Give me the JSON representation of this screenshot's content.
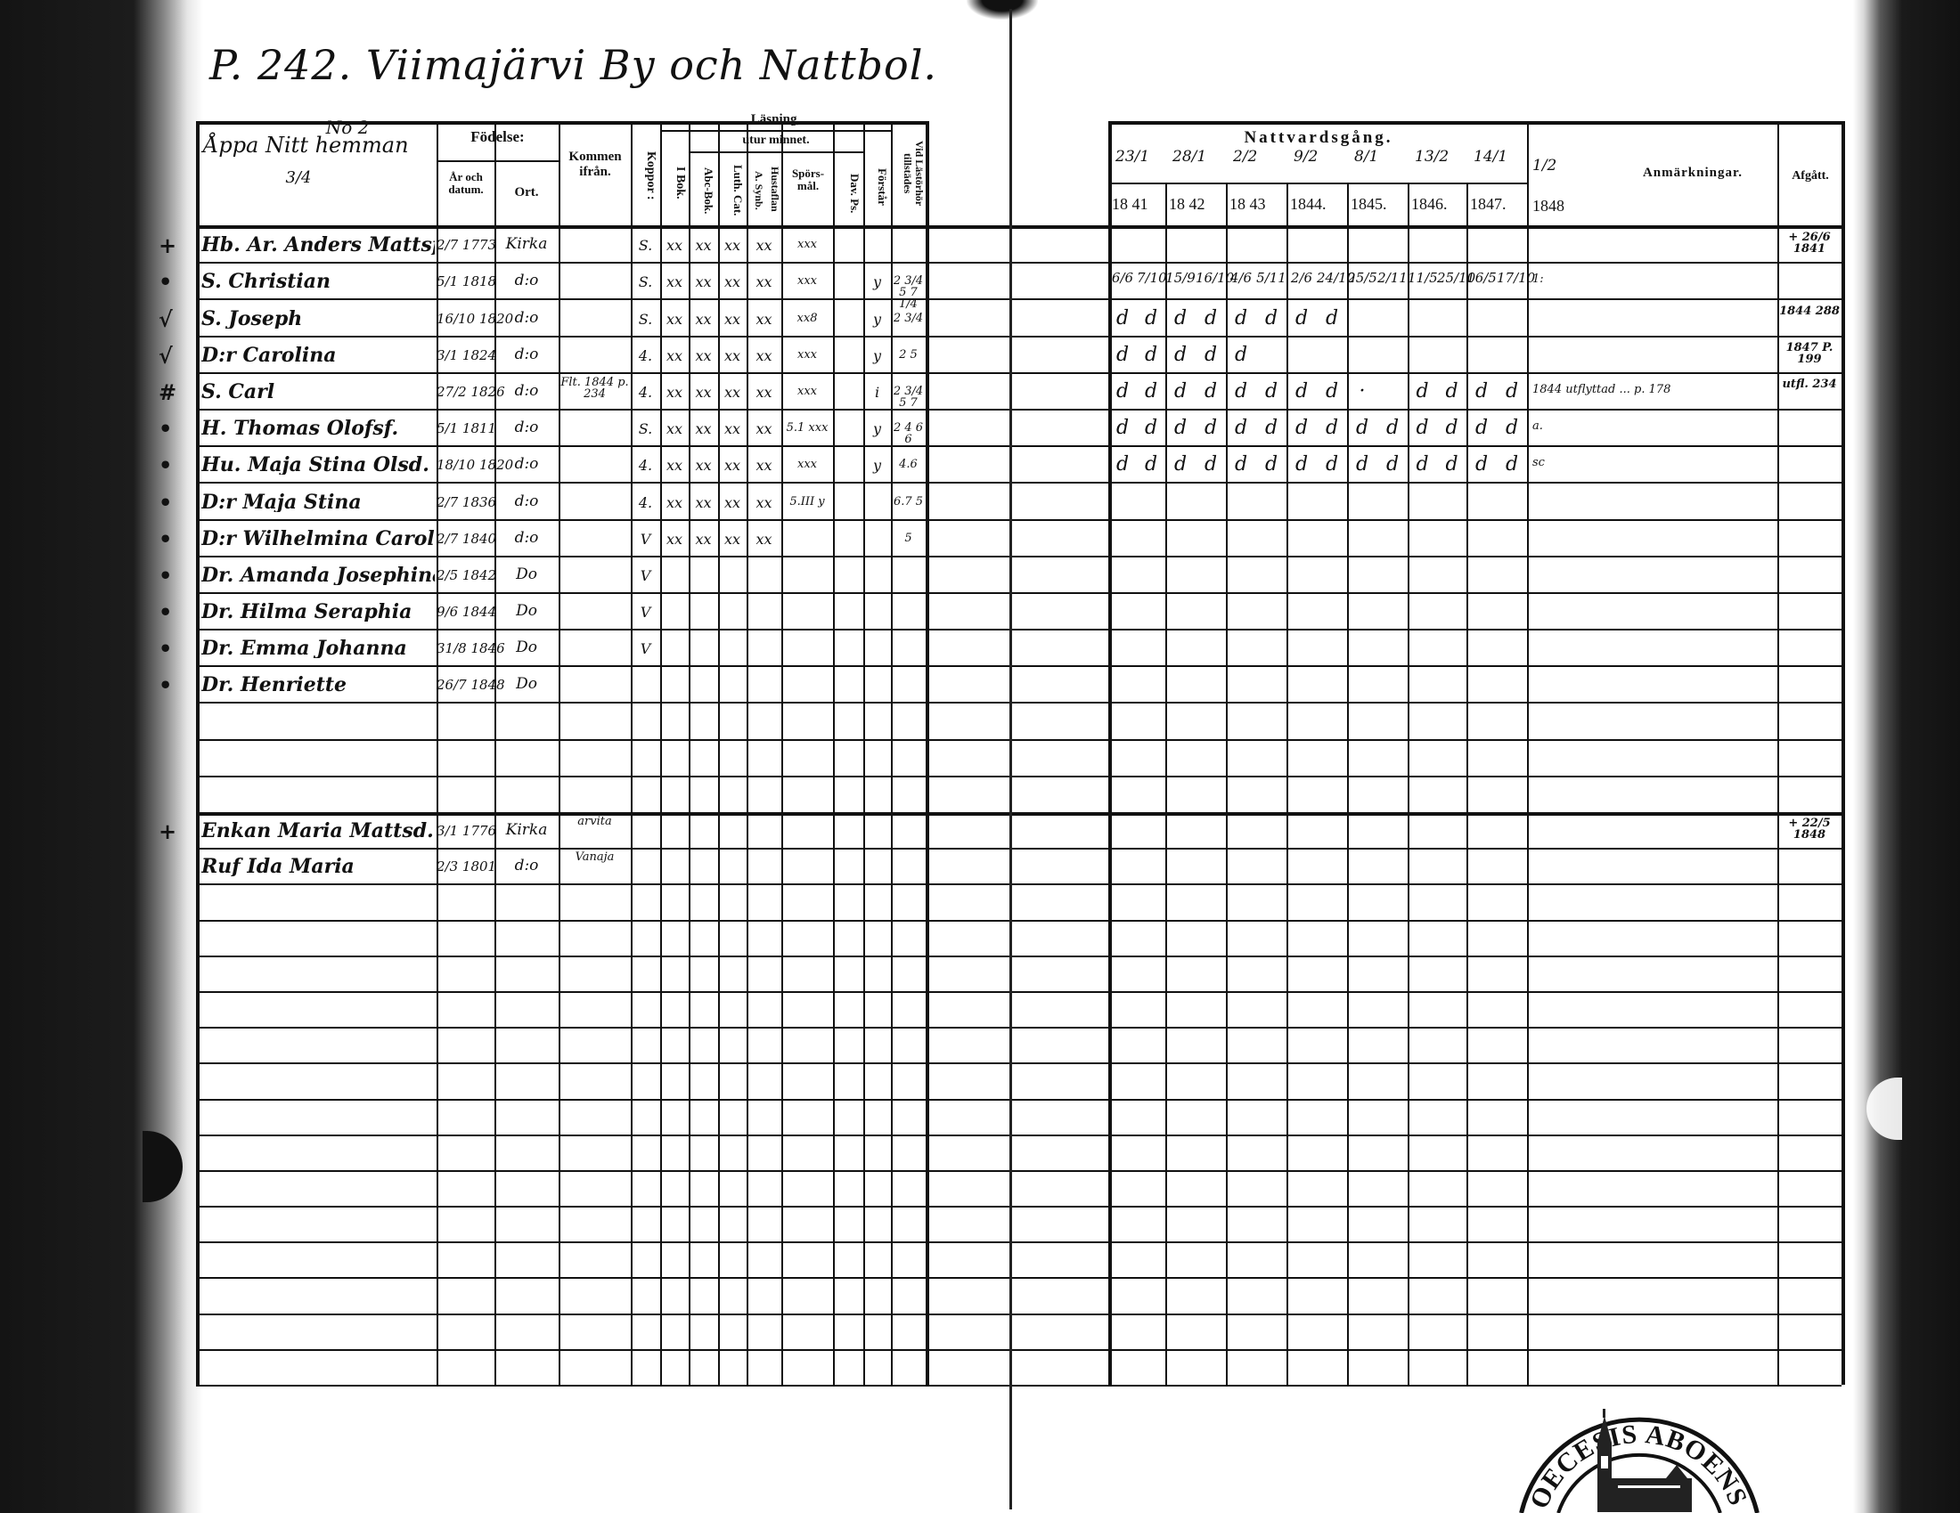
{
  "page_title": "P. 242. Viimajärvi By och Nattbol.",
  "left_header": {
    "col_household": "Åppa Nitt hemman",
    "col_household_no": "No 2",
    "col_household_sub": "3/4",
    "fodelse": "Födelse:",
    "ar_och_datum": "År och datum.",
    "ort": "Ort.",
    "kommen_ifran": "Kommen ifrån.",
    "koppor": "Koppor :",
    "lasning": "Läsning,",
    "utur_minnet": "utur minnet.",
    "i_bok": "I Bok.",
    "abc_bok": "Abc-Bok.",
    "luth_cat": "Luth. Cat.",
    "a_synb": "A. Synb.",
    "hustaflan": "Hustaflan",
    "sporsmal": "Spörs-mål.",
    "dav_ps": "Dav. Ps.",
    "forstar": "Förstår",
    "vid_lasforhor": "Vid Lästörhör tillstädes"
  },
  "right_header": {
    "nattvardsgang": "Nattvardsgång.",
    "dates": [
      "23/1",
      "28/1",
      "2/2",
      "9/2",
      "8/1",
      "13/2",
      "14/1",
      "1/2"
    ],
    "years": [
      "18 41",
      "18 42",
      "18 43",
      "1844.",
      "1845.",
      "1846.",
      "1847.",
      "1848"
    ],
    "anmarkningar": "Anmärkningar.",
    "afgatt": "Afgått."
  },
  "rows": [
    {
      "mark": "+",
      "name": "Hb. Ar. Anders Mattsf.",
      "date": "2/7 1773",
      "place": "Kirka",
      "from": "",
      "koppor": "S.",
      "ibok": "xx",
      "abc": "xx",
      "luth": "xx",
      "synb": "xx",
      "spors": "xxx",
      "davps": "",
      "forstar": "",
      "vid": "",
      "communion": [],
      "anm": "",
      "afgatt": "+ 26/6 1841"
    },
    {
      "mark": "•",
      "name": "S. Christian",
      "date": "5/1 1818",
      "place": "d:o",
      "from": "",
      "koppor": "S.",
      "ibok": "xx",
      "abc": "xx",
      "luth": "xx",
      "synb": "xx",
      "spors": "xxx",
      "davps": "",
      "forstar": "y",
      "vid": "2 3/4 5 7 1/4",
      "communion": [
        "6/6",
        "7/10",
        "15/9",
        "16/10",
        "4/6",
        "5/11",
        "2/6",
        "24/10",
        "25/5",
        "2/11",
        "11/5",
        "25/10",
        "16/5",
        "17/10"
      ],
      "anm": "1:",
      "afgatt": ""
    },
    {
      "mark": "√",
      "name": "S. Joseph",
      "date": "16/10 1820",
      "place": "d:o",
      "from": "",
      "koppor": "S.",
      "ibok": "xx",
      "abc": "xx",
      "luth": "xx",
      "synb": "xx",
      "spors": "xx8",
      "davps": "",
      "forstar": "y",
      "vid": "2 3/4",
      "communion": [
        "d",
        "d",
        "d",
        "d",
        "d",
        "d",
        "d",
        "d"
      ],
      "anm": "",
      "afgatt": "1844 288"
    },
    {
      "mark": "√",
      "name": "D:r Carolina",
      "date": "3/1 1824",
      "place": "d:o",
      "from": "",
      "koppor": "4.",
      "ibok": "xx",
      "abc": "xx",
      "luth": "xx",
      "synb": "xx",
      "spors": "xxx",
      "davps": "",
      "forstar": "y",
      "vid": "2 5",
      "communion": [
        "d",
        "d",
        "d",
        "d",
        "d"
      ],
      "anm": "",
      "afgatt": "1847 P. 199"
    },
    {
      "mark": "#",
      "name": "S. Carl",
      "date": "27/2 1826",
      "place": "d:o",
      "from": "Flt. 1844 p. 234",
      "koppor": "4.",
      "ibok": "xx",
      "abc": "xx",
      "luth": "xx",
      "synb": "xx",
      "spors": "xxx",
      "davps": "",
      "forstar": "i",
      "vid": "2 3/4 5 7",
      "communion": [
        "d",
        "d",
        "d",
        "d",
        "d",
        "d",
        "d",
        "d",
        "·",
        "",
        "d",
        "d",
        "d",
        "d"
      ],
      "anm": "1844 utflyttad ... p. 178",
      "afgatt": "utfl. 234"
    },
    {
      "mark": "•",
      "name": "H. Thomas Olofsf.",
      "date": "5/1 1811",
      "place": "d:o",
      "from": "",
      "koppor": "S.",
      "ibok": "xx",
      "abc": "xx",
      "luth": "xx",
      "synb": "xx",
      "spors": "5.1 xxx",
      "davps": "",
      "forstar": "y",
      "vid": "2 4 6 6",
      "communion": [
        "d",
        "d",
        "d",
        "d",
        "d",
        "d",
        "d",
        "d",
        "d",
        "d",
        "d",
        "d",
        "d",
        "d"
      ],
      "anm": "a.",
      "afgatt": ""
    },
    {
      "mark": "•",
      "name": "Hu. Maja Stina Olsd.",
      "date": "18/10 1820",
      "place": "d:o",
      "from": "",
      "koppor": "4.",
      "ibok": "xx",
      "abc": "xx",
      "luth": "xx",
      "synb": "xx",
      "spors": "xxx",
      "davps": "",
      "forstar": "y",
      "vid": "4.6",
      "communion": [
        "d",
        "d",
        "d",
        "d",
        "d",
        "d",
        "d",
        "d",
        "d",
        "d",
        "d",
        "d",
        "d",
        "d"
      ],
      "anm": "sc",
      "afgatt": ""
    },
    {
      "mark": "•",
      "name": "D:r Maja Stina",
      "date": "2/7 1836",
      "place": "d:o",
      "from": "",
      "koppor": "4.",
      "ibok": "xx",
      "abc": "xx",
      "luth": "xx",
      "synb": "xx",
      "spors": "5.III y",
      "davps": "",
      "forstar": "",
      "vid": "6.7 5",
      "communion": [],
      "anm": "",
      "afgatt": ""
    },
    {
      "mark": "•",
      "name": "D:r Wilhelmina Carolina",
      "date": "2/7 1840",
      "place": "d:o",
      "from": "",
      "koppor": "V",
      "ibok": "xx",
      "abc": "xx",
      "luth": "xx",
      "synb": "xx",
      "spors": "",
      "davps": "",
      "forstar": "",
      "vid": "5",
      "communion": [],
      "anm": "",
      "afgatt": ""
    },
    {
      "mark": "•",
      "name": "Dr. Amanda Josephina",
      "date": "2/5 1842",
      "place": "Do",
      "from": "",
      "koppor": "V",
      "ibok": "",
      "abc": "",
      "luth": "",
      "synb": "",
      "spors": "",
      "davps": "",
      "forstar": "",
      "vid": "",
      "communion": [],
      "anm": "",
      "afgatt": ""
    },
    {
      "mark": "•",
      "name": "Dr. Hilma Seraphia",
      "date": "9/6 1844",
      "place": "Do",
      "from": "",
      "koppor": "V",
      "ibok": "",
      "abc": "",
      "luth": "",
      "synb": "",
      "spors": "",
      "davps": "",
      "forstar": "",
      "vid": "",
      "communion": [],
      "anm": "",
      "afgatt": ""
    },
    {
      "mark": "•",
      "name": "Dr. Emma Johanna",
      "date": "31/8 1846",
      "place": "Do",
      "from": "",
      "koppor": "V",
      "ibok": "",
      "abc": "",
      "luth": "",
      "synb": "",
      "spors": "",
      "davps": "",
      "forstar": "",
      "vid": "",
      "communion": [],
      "anm": "",
      "afgatt": ""
    },
    {
      "mark": "•",
      "name": "Dr. Henriette",
      "date": "26/7 1848",
      "place": "Do",
      "from": "",
      "koppor": "",
      "ibok": "",
      "abc": "",
      "luth": "",
      "synb": "",
      "spors": "",
      "davps": "",
      "forstar": "",
      "vid": "",
      "communion": [],
      "anm": "",
      "afgatt": ""
    }
  ],
  "lower_rows": [
    {
      "mark": "+",
      "name": "Enkan Maria Mattsd.",
      "date": "3/1 1776",
      "place": "Kirka",
      "from": "arvita",
      "afgatt": "+ 22/5 1848"
    },
    {
      "mark": "",
      "name": "Ruf Ida Maria",
      "date": "2/3 1801",
      "place": "d:o",
      "from": "Vanaja",
      "afgatt": ""
    }
  ],
  "stamp": {
    "text": "L. DIOECESIS ABOENSIS. M"
  },
  "colors": {
    "ink": "#111111",
    "paper": "#ffffff",
    "scan_border": "#141414"
  }
}
